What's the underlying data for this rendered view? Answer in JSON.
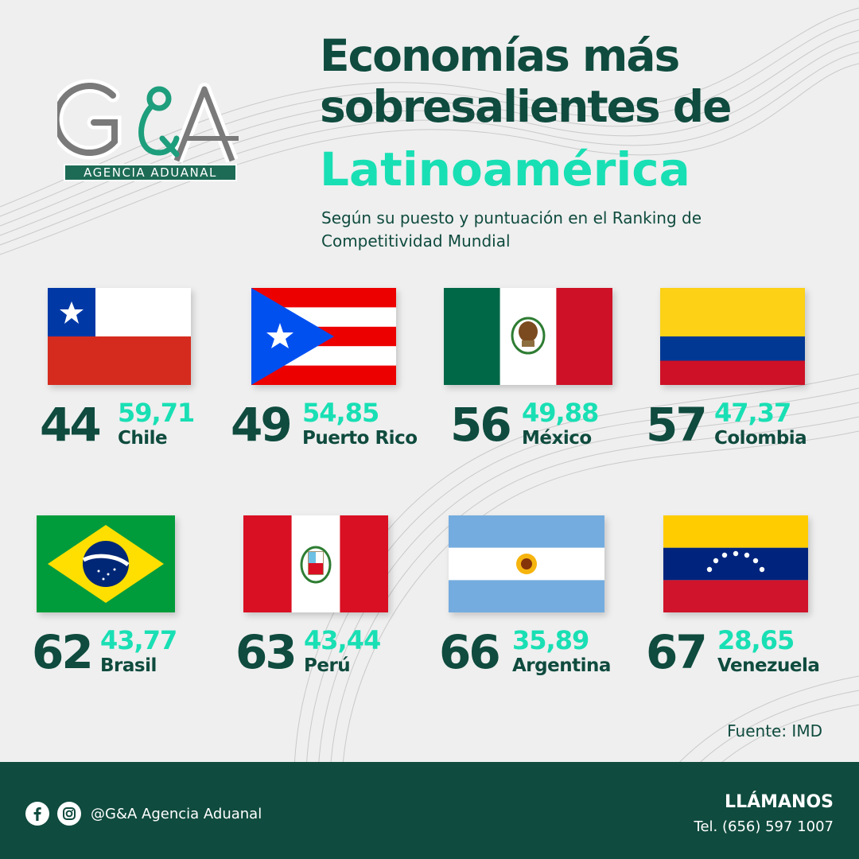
{
  "brand": {
    "logo_text": "G&A",
    "logo_band": "AGENCIA ADUANAL",
    "colors": {
      "dark_green": "#0f4b3e",
      "accent": "#19dfb4",
      "background": "#efefef"
    }
  },
  "header": {
    "title_line1": "Economías más",
    "title_line2": "sobresalientes de",
    "title_accent": "Latinoamérica",
    "subtitle": "Según su puesto y puntuación en el Ranking de Competitividad Mundial"
  },
  "chart_data": {
    "type": "table",
    "columns": [
      "rank",
      "score",
      "country"
    ],
    "rows": [
      {
        "rank": "44",
        "score": "59,71",
        "country": "Chile",
        "flag": "chile-flag"
      },
      {
        "rank": "49",
        "score": "54,85",
        "country": "Puerto Rico",
        "flag": "puerto-rico-flag"
      },
      {
        "rank": "56",
        "score": "49,88",
        "country": "México",
        "flag": "mexico-flag"
      },
      {
        "rank": "57",
        "score": "47,37",
        "country": "Colombia",
        "flag": "colombia-flag"
      },
      {
        "rank": "62",
        "score": "43,77",
        "country": "Brasil",
        "flag": "brazil-flag"
      },
      {
        "rank": "63",
        "score": "43,44",
        "country": "Perú",
        "flag": "peru-flag"
      },
      {
        "rank": "66",
        "score": "35,89",
        "country": "Argentina",
        "flag": "argentina-flag"
      },
      {
        "rank": "67",
        "score": "28,65",
        "country": "Venezuela",
        "flag": "venezuela-flag"
      }
    ]
  },
  "source": "Fuente: IMD",
  "footer": {
    "social_handle": "@G&A Agencia Aduanal",
    "icons": [
      "facebook-icon",
      "instagram-icon"
    ],
    "cta": "LLÁMANOS",
    "phone": "Tel. (656) 597 1007"
  }
}
